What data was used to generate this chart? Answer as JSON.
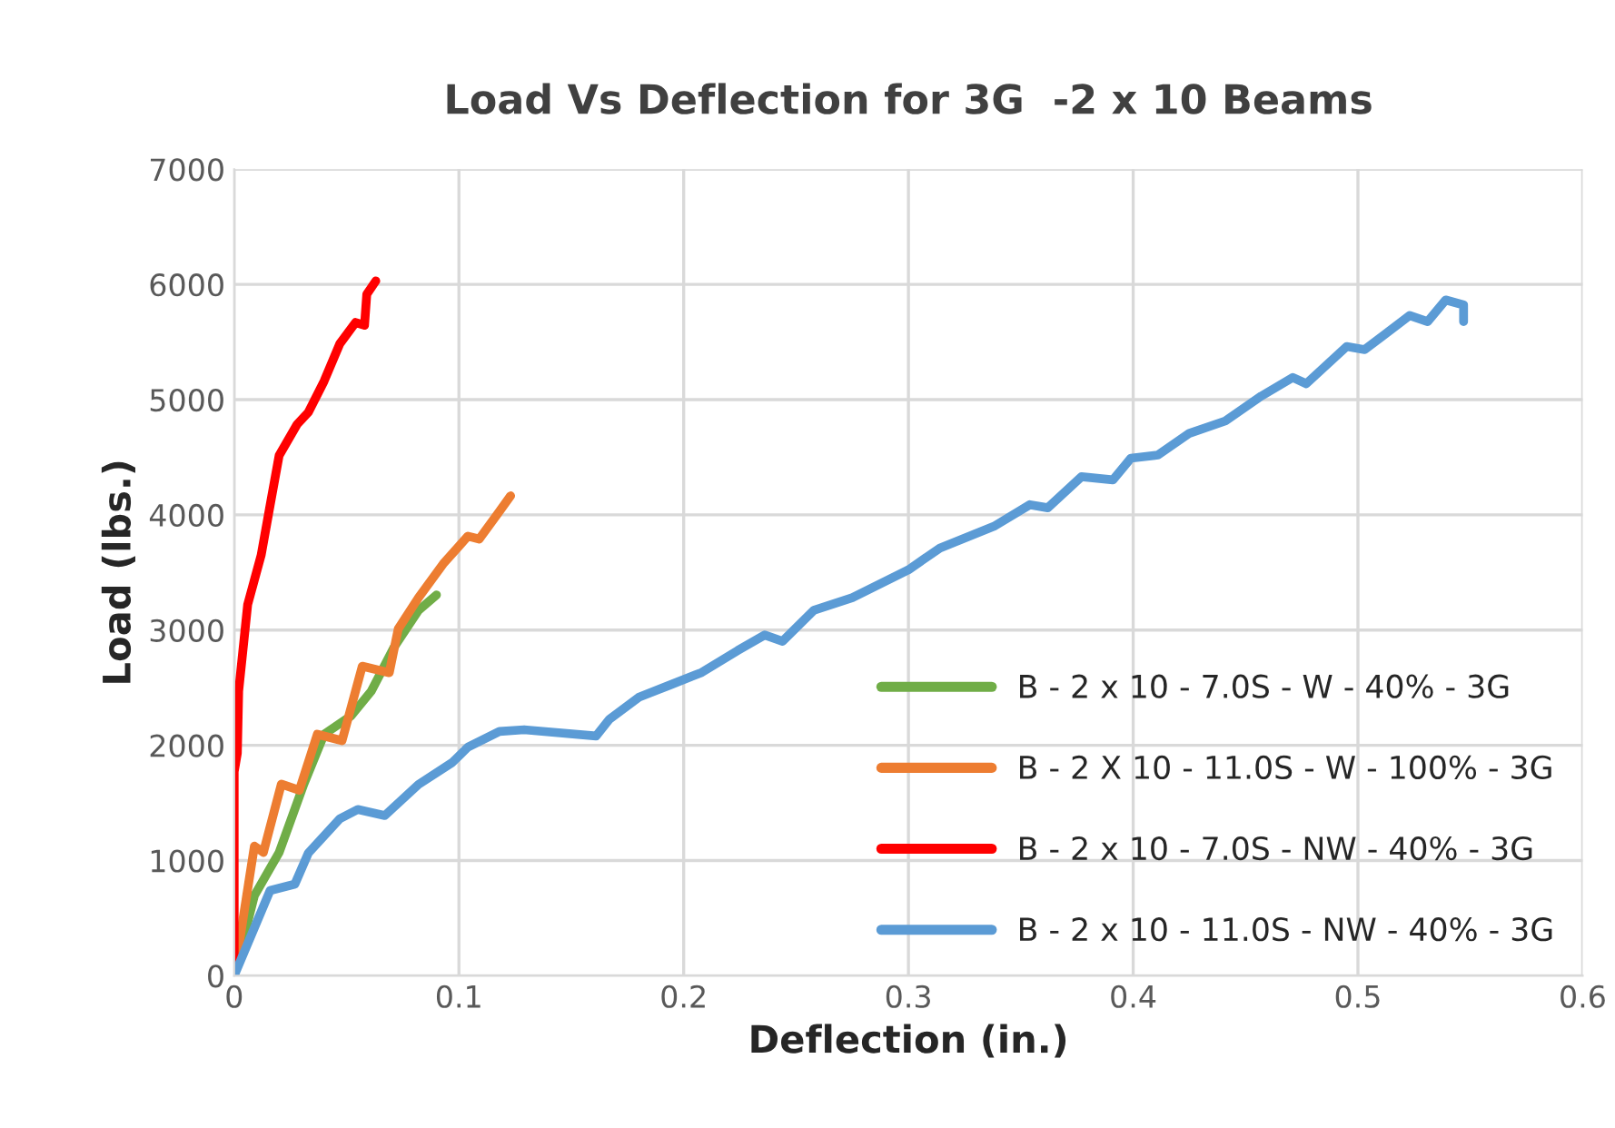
{
  "chart_data": {
    "type": "line",
    "title": "Load Vs Deflection for 3G  -2 x 10 Beams",
    "xlabel": "Deflection (in.)",
    "ylabel": "Load (lbs.)",
    "xlim": [
      0,
      0.6
    ],
    "xticks": [
      0,
      0.1,
      0.2,
      0.3,
      0.4,
      0.5,
      0.6
    ],
    "ylim": [
      0,
      7000
    ],
    "yticks": [
      0,
      1000,
      2000,
      3000,
      4000,
      5000,
      6000,
      7000
    ],
    "grid": true,
    "legend": "bottom right",
    "marker": "none",
    "line_style": "solid",
    "series": [
      {
        "name": "B - 2 x 10 - 7.0S - W - 40% - 3G",
        "color": "#70ad47",
        "x": [
          0,
          0.009,
          0.02,
          0.031,
          0.04,
          0.052,
          0.061,
          0.071,
          0.082,
          0.09
        ],
        "values": [
          0,
          695,
          1070,
          1663,
          2095,
          2255,
          2470,
          2847,
          3170,
          3305
        ]
      },
      {
        "name": "B - 2 X 10 - 11.0S - W - 100% - 3G",
        "color": "#ed7d31",
        "x": [
          0,
          0.009,
          0.013,
          0.021,
          0.029,
          0.037,
          0.048,
          0.057,
          0.069,
          0.073,
          0.082,
          0.093,
          0.104,
          0.109,
          0.118,
          0.123
        ],
        "values": [
          0,
          1125,
          1070,
          1663,
          1610,
          2095,
          2040,
          2686,
          2630,
          3010,
          3280,
          3575,
          3815,
          3790,
          4030,
          4165
        ]
      },
      {
        "name": "B - 2 x 10 - 7.0S - NW - 40% - 3G",
        "color": "#ff0000",
        "x": [
          0,
          0.0,
          0.0014,
          0.002,
          0.006,
          0.012,
          0.016,
          0.02,
          0.028,
          0.033,
          0.04,
          0.047,
          0.054,
          0.058,
          0.059,
          0.063
        ],
        "values": [
          0,
          1770,
          1930,
          2470,
          3220,
          3650,
          4085,
          4515,
          4785,
          4890,
          5160,
          5485,
          5670,
          5645,
          5915,
          6030
        ]
      },
      {
        "name": "B - 2 x 10 - 11.0S - NW - 40% - 3G",
        "color": "#5b9bd5",
        "x": [
          0,
          0.016,
          0.027,
          0.033,
          0.047,
          0.055,
          0.067,
          0.082,
          0.097,
          0.104,
          0.118,
          0.129,
          0.161,
          0.167,
          0.18,
          0.194,
          0.208,
          0.224,
          0.236,
          0.244,
          0.258,
          0.275,
          0.3,
          0.314,
          0.338,
          0.354,
          0.362,
          0.377,
          0.391,
          0.399,
          0.411,
          0.425,
          0.441,
          0.457,
          0.471,
          0.477,
          0.495,
          0.503,
          0.523,
          0.531,
          0.539,
          0.547,
          0.547
        ],
        "values": [
          0,
          740,
          795,
          1065,
          1362,
          1443,
          1390,
          1660,
          1850,
          1984,
          2120,
          2135,
          2080,
          2227,
          2416,
          2524,
          2632,
          2822,
          2957,
          2903,
          3173,
          3281,
          3523,
          3712,
          3900,
          4088,
          4061,
          4331,
          4304,
          4492,
          4519,
          4708,
          4815,
          5031,
          5192,
          5138,
          5461,
          5434,
          5731,
          5677,
          5865,
          5822,
          5677
        ]
      }
    ]
  }
}
